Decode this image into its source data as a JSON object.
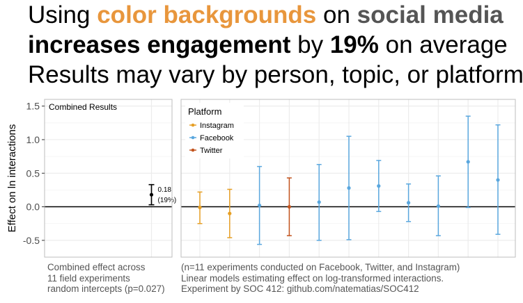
{
  "headline": {
    "line1": {
      "pre": "Using ",
      "highlight_orange": "color backgrounds",
      "mid": " on ",
      "highlight_gray": "social media"
    },
    "line2": {
      "bold1": "increases engagement",
      "mid": " by ",
      "bold2": "19%",
      "post": " on average"
    },
    "line3": "Results may vary by person, topic, or platform"
  },
  "colors": {
    "orange": "#e8963c",
    "instagram": "#e69f25",
    "facebook": "#5aa7de",
    "twitter": "#c2531d",
    "combined": "#000000",
    "panel_border": "#bdbdbd",
    "grid": "#ececec"
  },
  "chart_data": [
    {
      "type": "scatter",
      "panel_title": "Combined Results",
      "ylabel": "Effect on ln interactions",
      "ylim": [
        -0.75,
        1.6
      ],
      "yticks": [
        -0.5,
        0.0,
        0.5,
        1.0,
        1.5
      ],
      "ytick_labels": [
        "-0.5",
        "0.0",
        "0.5",
        "1.0",
        "1.5"
      ],
      "reference_line": 0,
      "points": [
        {
          "estimate": 0.18,
          "lower": 0.03,
          "upper": 0.33,
          "label": "0.18",
          "sublabel": "(19%)"
        }
      ]
    },
    {
      "type": "scatter",
      "legend_title": "Platform",
      "legend_position": "top-left",
      "legend": [
        "Instagram",
        "Facebook",
        "Twitter"
      ],
      "ylim": [
        -0.75,
        1.6
      ],
      "reference_line": 0,
      "series": [
        {
          "platform": "Instagram",
          "estimate": -0.01,
          "lower": -0.25,
          "upper": 0.22
        },
        {
          "platform": "Instagram",
          "estimate": -0.1,
          "lower": -0.46,
          "upper": 0.26
        },
        {
          "platform": "Facebook",
          "estimate": 0.02,
          "lower": -0.56,
          "upper": 0.6
        },
        {
          "platform": "Twitter",
          "estimate": 0.0,
          "lower": -0.43,
          "upper": 0.43
        },
        {
          "platform": "Facebook",
          "estimate": 0.07,
          "lower": -0.5,
          "upper": 0.63
        },
        {
          "platform": "Facebook",
          "estimate": 0.28,
          "lower": -0.49,
          "upper": 1.05
        },
        {
          "platform": "Facebook",
          "estimate": 0.31,
          "lower": -0.07,
          "upper": 0.69
        },
        {
          "platform": "Facebook",
          "estimate": 0.06,
          "lower": -0.22,
          "upper": 0.34
        },
        {
          "platform": "Facebook",
          "estimate": 0.01,
          "lower": -0.43,
          "upper": 0.46
        },
        {
          "platform": "Facebook",
          "estimate": 0.67,
          "lower": -0.01,
          "upper": 1.35
        },
        {
          "platform": "Facebook",
          "estimate": 0.4,
          "lower": -0.41,
          "upper": 1.22
        }
      ]
    }
  ],
  "captions": {
    "left": [
      "Combined effect across",
      "11 field experiments",
      "random intercepts (p=0.027)"
    ],
    "right": [
      "(n=11 experiments conducted on Facebook, Twitter, and Instagram)",
      "Linear models estimating effect on log-transformed interactions.",
      "Experiment by SOC 412: github.com/natematias/SOC412"
    ]
  }
}
